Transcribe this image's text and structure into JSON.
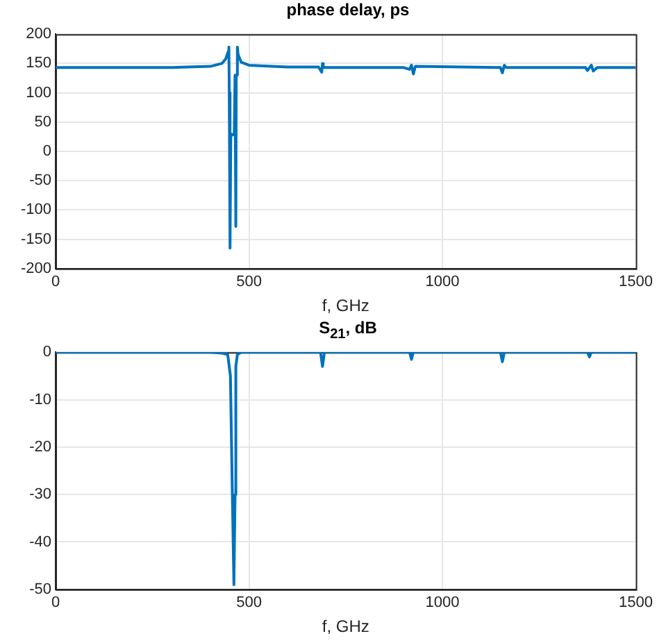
{
  "chart_data": [
    {
      "type": "line",
      "title": "phase delay, ps",
      "xlabel": "f, GHz",
      "series": [
        {
          "color": "#0072bd",
          "x": [
            0,
            300,
            400,
            430,
            440,
            446,
            448,
            449,
            451,
            453,
            458,
            462,
            464,
            466,
            467,
            470,
            472,
            480,
            500,
            600,
            680,
            688,
            690,
            692,
            900,
            915,
            920,
            925,
            930,
            1150,
            1155,
            1160,
            1165,
            1370,
            1375,
            1385,
            1390,
            1400,
            1500
          ],
          "values": [
            143,
            143,
            145,
            150,
            158,
            170,
            178,
            100,
            -165,
            30,
            28,
            30,
            130,
            -128,
            130,
            178,
            165,
            152,
            147,
            144,
            144,
            135,
            150,
            143,
            143,
            140,
            147,
            132,
            145,
            143,
            134,
            147,
            143,
            143,
            138,
            147,
            137,
            143,
            143
          ]
        }
      ],
      "xlim": [
        0,
        1500
      ],
      "xticks": [
        0,
        500,
        1000,
        1500
      ],
      "ylim": [
        -200,
        200
      ],
      "yticks": [
        -200,
        -150,
        -100,
        -50,
        0,
        50,
        100,
        150,
        200
      ],
      "grid": true,
      "legend": false,
      "line_style": "solid",
      "marker": "none"
    },
    {
      "type": "line",
      "title": "S$_{21}$, dB",
      "xlabel": "f, GHz",
      "series": [
        {
          "color": "#0072bd",
          "x": [
            0,
            400,
            430,
            445,
            452,
            457,
            461,
            464,
            466,
            470,
            480,
            685,
            690,
            695,
            915,
            920,
            925,
            1150,
            1155,
            1160,
            1375,
            1380,
            1385,
            1500
          ],
          "values": [
            0,
            0,
            -0.2,
            -0.5,
            -5,
            -30,
            -49,
            -30,
            -3,
            -0.5,
            0,
            0,
            -3,
            0,
            0,
            -1.5,
            0,
            0,
            -2,
            0,
            0,
            -1,
            0,
            0
          ]
        }
      ],
      "xlim": [
        0,
        1500
      ],
      "xticks": [
        0,
        500,
        1000,
        1500
      ],
      "ylim": [
        -50,
        0
      ],
      "yticks": [
        -50,
        -40,
        -30,
        -20,
        -10,
        0
      ],
      "grid": true,
      "legend": false,
      "line_style": "solid",
      "marker": "none"
    }
  ]
}
